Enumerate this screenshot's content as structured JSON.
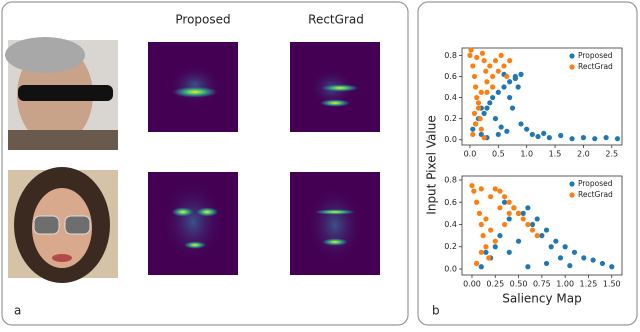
{
  "figure": {
    "panel_a_label": "a",
    "panel_b_label": "b",
    "column_headers": [
      "Proposed",
      "RectGrad"
    ]
  },
  "chart_data": [
    {
      "type": "scatter",
      "ylabel": "Input Pixel Value",
      "legend": "upper right",
      "xlim": [
        -0.14,
        2.68
      ],
      "ylim": [
        -0.05,
        0.87
      ],
      "xticks": [
        {
          "value": 0,
          "label": "0.0"
        },
        {
          "value": 0.5,
          "label": "0.5"
        },
        {
          "value": 1,
          "label": "1.0"
        },
        {
          "value": 1.5,
          "label": "1.5"
        },
        {
          "value": 2,
          "label": "2.0"
        },
        {
          "value": 2.5,
          "label": "2.5"
        }
      ],
      "yticks": [
        {
          "value": 0,
          "label": "0.0"
        },
        0.2,
        0.4,
        0.6,
        0.8
      ],
      "series": [
        {
          "name": "Proposed",
          "color": "#1f77b4",
          "x": [
            0.05,
            0.1,
            0.15,
            0.2,
            0.25,
            0.3,
            0.35,
            0.4,
            0.5,
            0.6,
            0.7,
            0.8,
            0.9,
            1.0,
            1.1,
            1.2,
            1.4,
            1.6,
            1.8,
            2.0,
            2.2,
            2.4,
            2.6,
            0.45,
            0.55,
            0.65,
            0.75,
            0.8,
            0.85,
            0.6,
            0.7,
            0.5,
            0.3,
            0.2,
            1.3,
            0.9
          ],
          "y": [
            0.1,
            0.15,
            0.2,
            0.05,
            0.25,
            0.3,
            0.35,
            0.4,
            0.45,
            0.5,
            0.55,
            0.6,
            0.62,
            0.1,
            0.05,
            0.03,
            0.02,
            0.04,
            0.01,
            0.02,
            0.01,
            0.02,
            0.01,
            0.2,
            0.12,
            0.08,
            0.3,
            0.58,
            0.5,
            0.62,
            0.4,
            0.05,
            0.02,
            0.3,
            0.06,
            0.15
          ]
        },
        {
          "name": "RectGrad",
          "color": "#ff7f0e",
          "x": [
            0.0,
            0.02,
            0.05,
            0.08,
            0.1,
            0.12,
            0.15,
            0.18,
            0.2,
            0.22,
            0.25,
            0.28,
            0.3,
            0.35,
            0.4,
            0.45,
            0.5,
            0.55,
            0.6,
            0.65,
            0.7,
            0.05,
            0.1,
            0.15,
            0.2,
            0.3,
            0.4,
            0.08,
            0.12,
            0.25
          ],
          "y": [
            0.8,
            0.85,
            0.7,
            0.6,
            0.5,
            0.4,
            0.3,
            0.2,
            0.1,
            0.82,
            0.75,
            0.65,
            0.55,
            0.7,
            0.6,
            0.75,
            0.65,
            0.8,
            0.7,
            0.6,
            0.75,
            0.05,
            0.15,
            0.35,
            0.45,
            0.45,
            0.5,
            0.25,
            0.78,
            0.02
          ]
        }
      ]
    },
    {
      "type": "scatter",
      "xlabel": "Saliency Map",
      "legend": "upper right",
      "xlim": [
        -0.107,
        1.61
      ],
      "ylim": [
        -0.054,
        0.836
      ],
      "xticks": [
        {
          "value": 0,
          "label": "0.00"
        },
        {
          "value": 0.25,
          "label": "0.25"
        },
        {
          "value": 0.5,
          "label": "0.50"
        },
        {
          "value": 0.75,
          "label": "0.75"
        },
        {
          "value": 1,
          "label": "1.00"
        },
        {
          "value": 1.25,
          "label": "1.25"
        },
        {
          "value": 1.5,
          "label": "1.50"
        }
      ],
      "yticks": [
        {
          "value": 0,
          "label": "0.0"
        },
        0.2,
        0.4,
        0.6,
        0.8
      ],
      "series": [
        {
          "name": "Proposed",
          "color": "#1f77b4",
          "x": [
            0.05,
            0.1,
            0.2,
            0.3,
            0.4,
            0.5,
            0.6,
            0.7,
            0.8,
            0.9,
            1.0,
            1.1,
            1.2,
            1.3,
            1.4,
            1.5,
            0.35,
            0.45,
            0.55,
            0.65,
            0.75,
            0.85,
            0.95,
            0.25,
            0.15,
            0.6,
            0.8,
            1.05,
            0.4,
            0.5
          ],
          "y": [
            0.05,
            0.02,
            0.1,
            0.3,
            0.45,
            0.5,
            0.55,
            0.45,
            0.35,
            0.25,
            0.2,
            0.15,
            0.1,
            0.08,
            0.05,
            0.02,
            0.6,
            0.55,
            0.5,
            0.4,
            0.3,
            0.2,
            0.1,
            0.2,
            0.15,
            0.02,
            0.05,
            0.03,
            0.15,
            0.25
          ]
        },
        {
          "name": "RectGrad",
          "color": "#ff7f0e",
          "x": [
            0.0,
            0.02,
            0.05,
            0.08,
            0.1,
            0.12,
            0.15,
            0.18,
            0.2,
            0.25,
            0.3,
            0.35,
            0.4,
            0.45,
            0.5,
            0.55,
            0.6,
            0.65,
            0.7,
            0.05,
            0.1,
            0.15,
            0.2,
            0.3,
            0.4,
            0.1,
            0.25,
            0.35
          ],
          "y": [
            0.75,
            0.7,
            0.6,
            0.5,
            0.4,
            0.3,
            0.2,
            0.1,
            0.65,
            0.72,
            0.7,
            0.65,
            0.6,
            0.55,
            0.5,
            0.45,
            0.4,
            0.35,
            0.3,
            0.05,
            0.15,
            0.45,
            0.35,
            0.55,
            0.5,
            0.72,
            0.25,
            0.4
          ]
        }
      ]
    }
  ]
}
